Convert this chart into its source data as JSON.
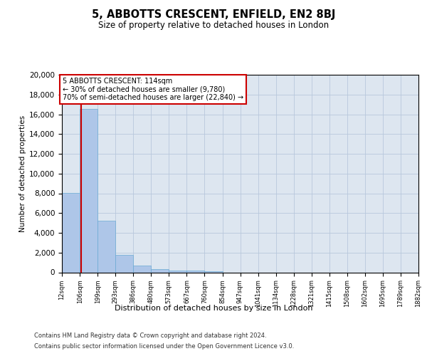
{
  "title": "5, ABBOTTS CRESCENT, ENFIELD, EN2 8BJ",
  "subtitle": "Size of property relative to detached houses in London",
  "xlabel": "Distribution of detached houses by size in London",
  "ylabel": "Number of detached properties",
  "annotation_line1": "5 ABBOTTS CRESCENT: 114sqm",
  "annotation_line2": "← 30% of detached houses are smaller (9,780)",
  "annotation_line3": "70% of semi-detached houses are larger (22,840) →",
  "property_size": 114,
  "bin_edges": [
    12,
    106,
    199,
    293,
    386,
    480,
    573,
    667,
    760,
    854,
    947,
    1041,
    1134,
    1228,
    1321,
    1415,
    1508,
    1602,
    1695,
    1789,
    1882
  ],
  "bar_heights": [
    8050,
    16550,
    5250,
    1750,
    650,
    300,
    180,
    150,
    120,
    0,
    0,
    0,
    0,
    0,
    0,
    0,
    0,
    0,
    0,
    0
  ],
  "bar_color": "#aec6e8",
  "bar_edgecolor": "#6aaad4",
  "red_line_color": "#cc0000",
  "annotation_box_edgecolor": "#cc0000",
  "background_color": "#ffffff",
  "axes_bg_color": "#dde6f0",
  "grid_color": "#b8c8dc",
  "ylim_max": 20000,
  "yticks": [
    0,
    2000,
    4000,
    6000,
    8000,
    10000,
    12000,
    14000,
    16000,
    18000,
    20000
  ],
  "footer_line1": "Contains HM Land Registry data © Crown copyright and database right 2024.",
  "footer_line2": "Contains public sector information licensed under the Open Government Licence v3.0."
}
